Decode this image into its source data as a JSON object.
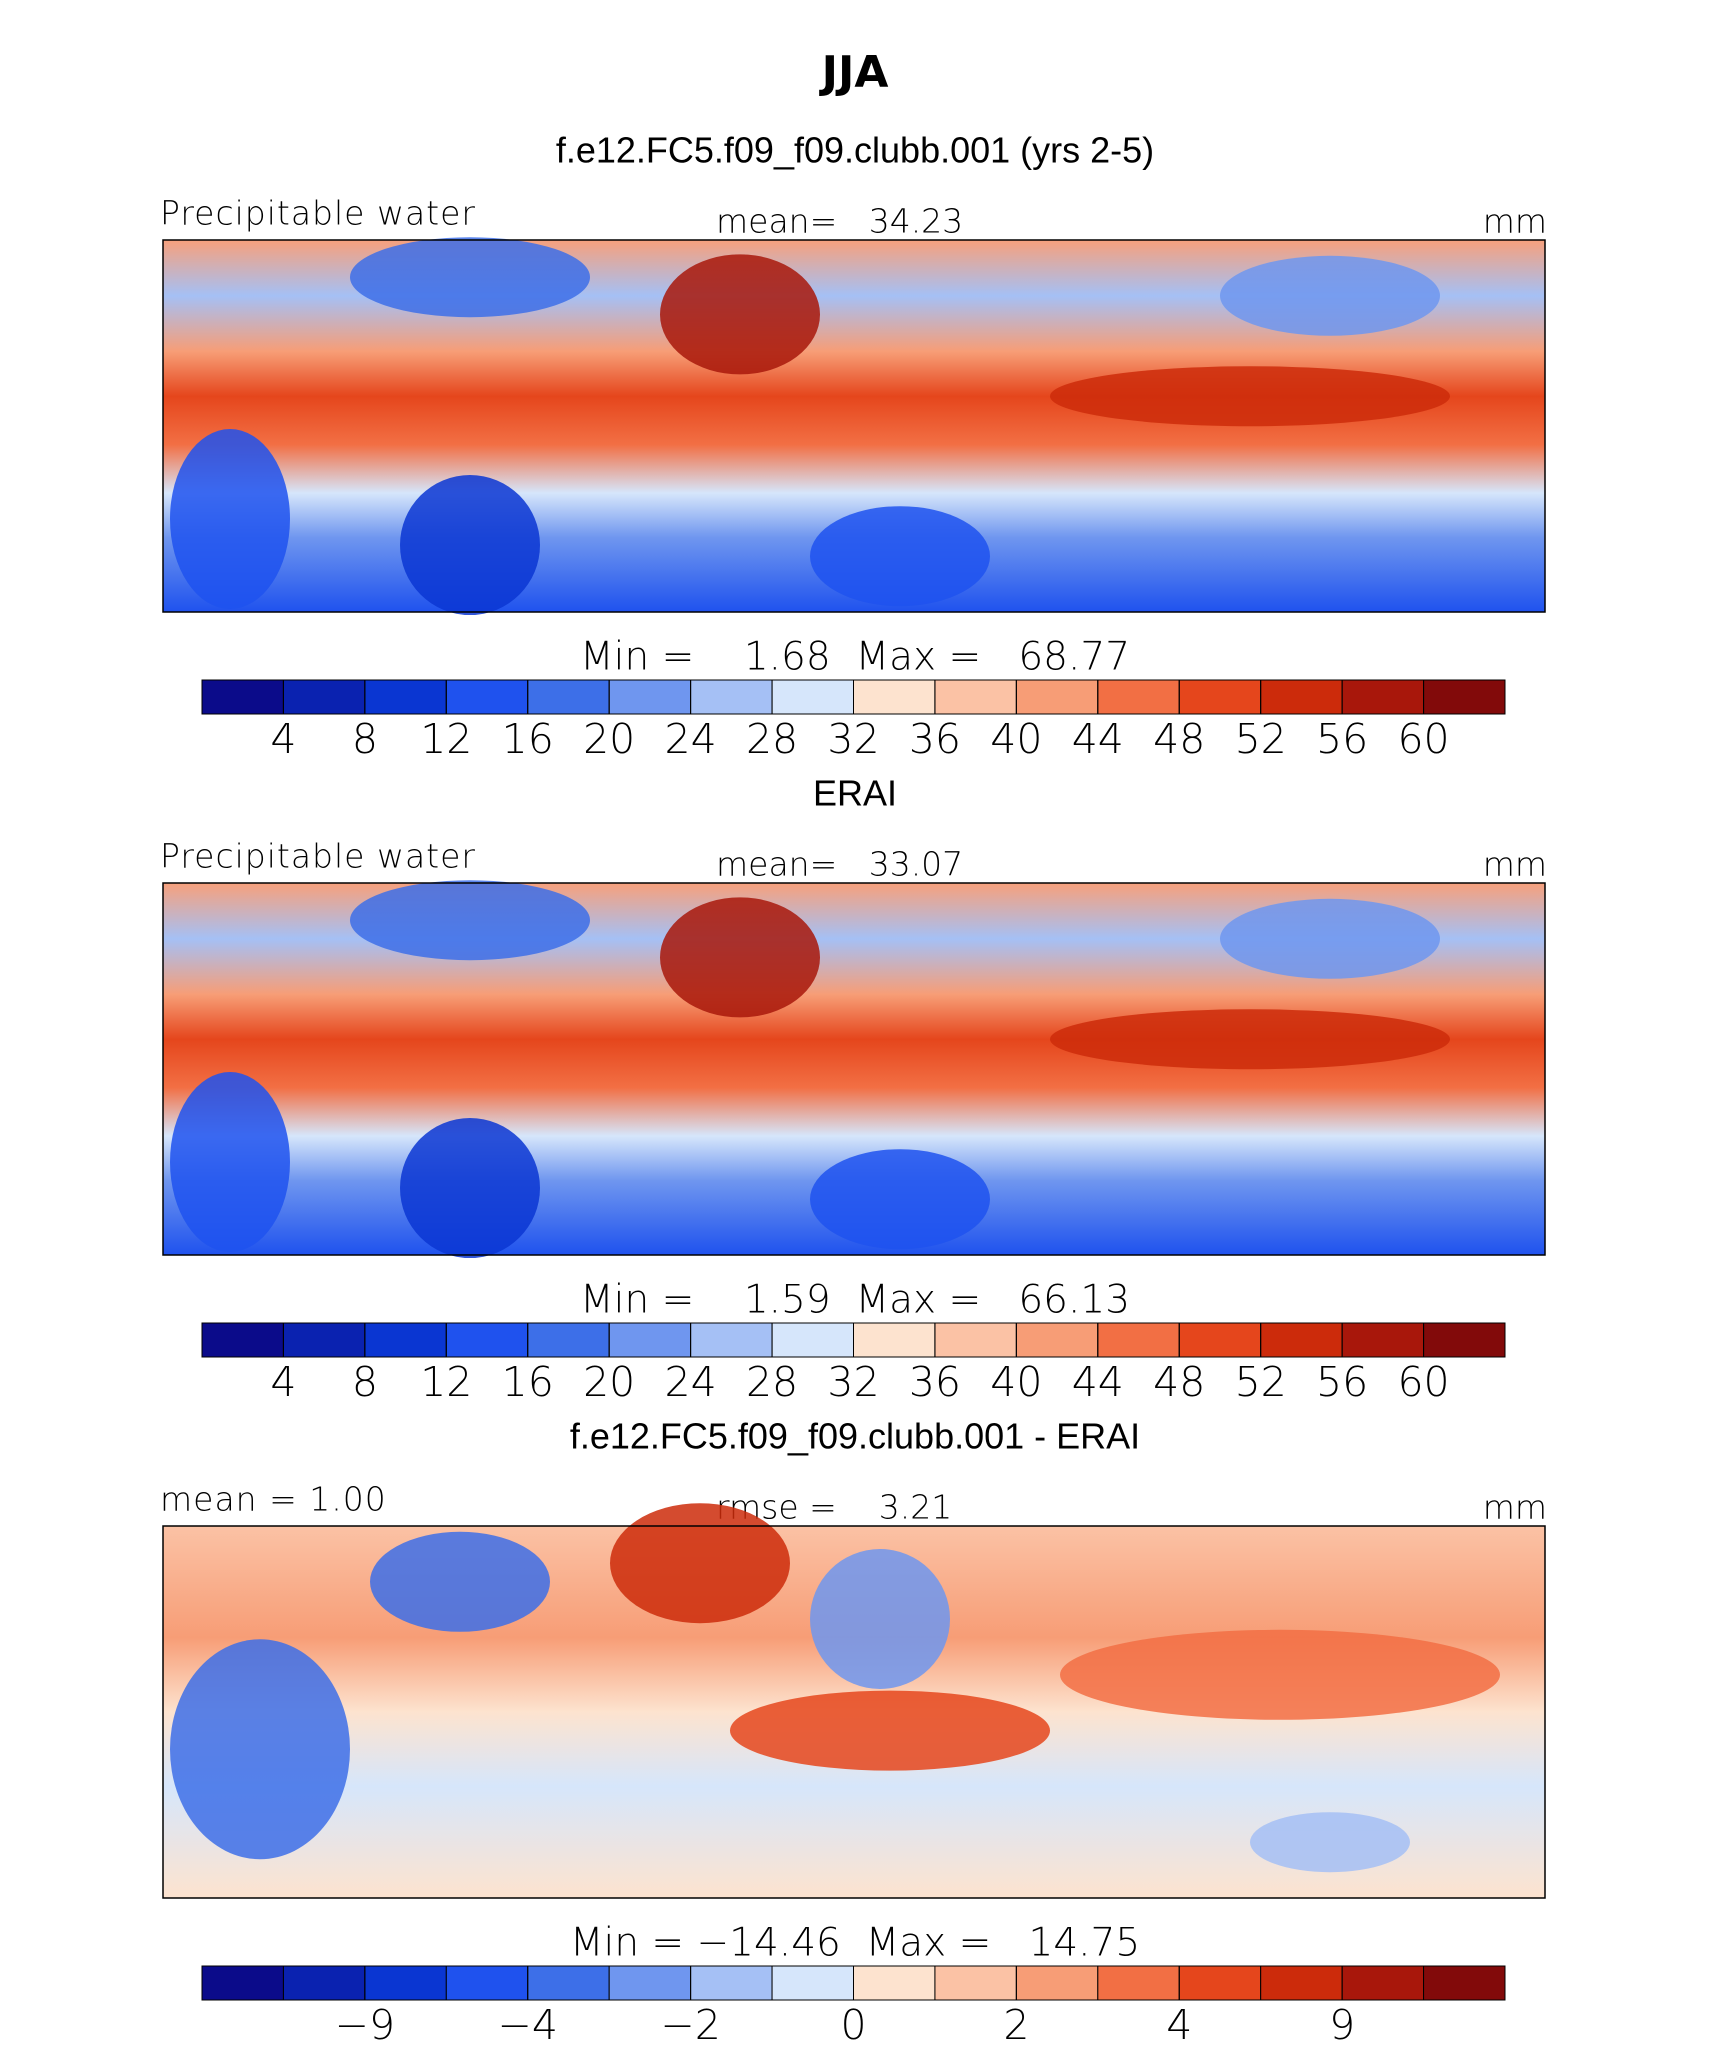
{
  "title": "JJA",
  "palette": [
    "#0b0b8a",
    "#0a22b0",
    "#0a36d2",
    "#1f52ee",
    "#3d6fe8",
    "#6f96ef",
    "#a5c0f5",
    "#d6e6fb",
    "#fde3cf",
    "#fbc2a5",
    "#f79d76",
    "#f26f44",
    "#e5461c",
    "#cc2b0b",
    "#a8170b",
    "#820a0a"
  ],
  "panels": [
    {
      "heading": "f.e12.FC5.f09_f09.clubb.001 (yrs 2-5)",
      "left_label": "Precipitable water",
      "center_label": "mean=   34.23",
      "units": "mm",
      "stats": "Min =    1.68  Max =   68.77",
      "colorbar_ticks": [
        4,
        8,
        12,
        16,
        20,
        24,
        28,
        32,
        36,
        40,
        44,
        48,
        52,
        56,
        60
      ]
    },
    {
      "heading": "ERAI",
      "left_label": "Precipitable water",
      "center_label": "mean=   33.07",
      "units": "mm",
      "stats": "Min =    1.59  Max =   66.13",
      "colorbar_ticks": [
        4,
        8,
        12,
        16,
        20,
        24,
        28,
        32,
        36,
        40,
        44,
        48,
        52,
        56,
        60
      ]
    },
    {
      "heading": "f.e12.FC5.f09_f09.clubb.001 - ERAI",
      "left_label": "mean =    1.00",
      "center_label": "rmse =    3.21",
      "units": "mm",
      "stats": "Min = −14.46  Max =   14.75",
      "colorbar_ticks": [
        null,
        {
          "value": -9,
          "label": "−9"
        },
        null,
        {
          "value": -4,
          "label": "−4"
        },
        null,
        {
          "value": -2,
          "label": "−2"
        },
        null,
        0,
        null,
        2,
        null,
        4,
        null,
        9,
        null
      ]
    }
  ]
}
